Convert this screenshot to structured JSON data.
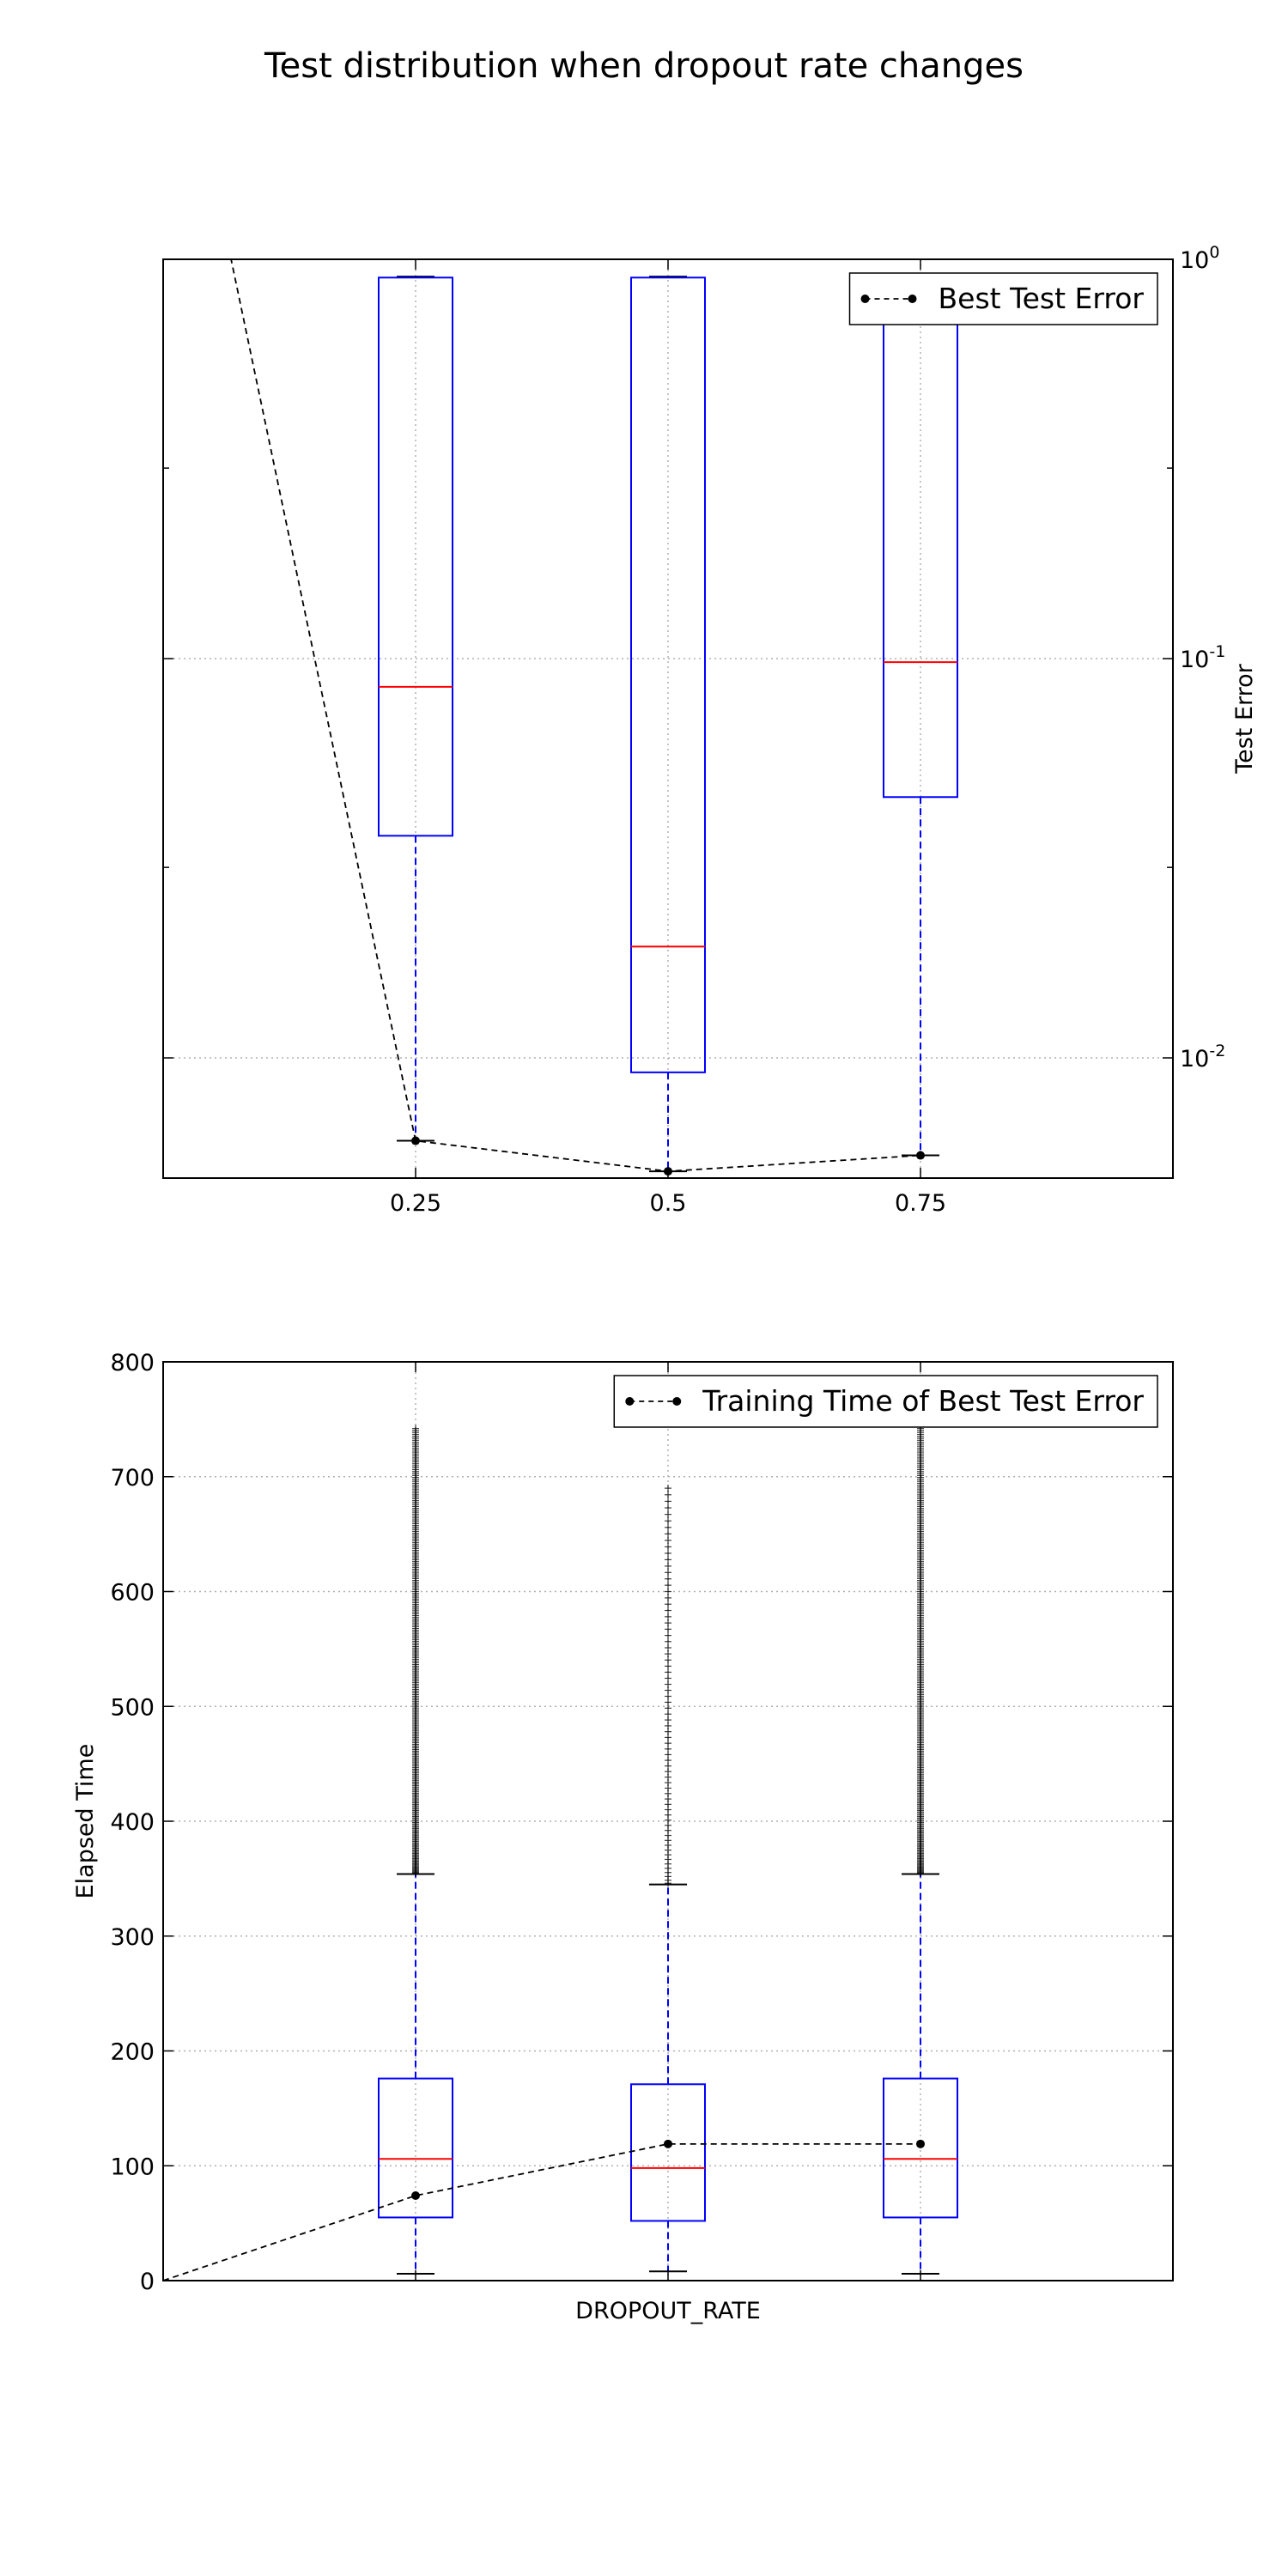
{
  "figure": {
    "title": "Test distribution when dropout rate changes"
  },
  "chart_data": [
    {
      "type": "box",
      "name": "test-error-panel",
      "x_categories": [
        0.25,
        0.5,
        0.75
      ],
      "xticklabels": [
        "0.25",
        "0.5",
        "0.75"
      ],
      "xlim": [
        0,
        1
      ],
      "xlabel": "",
      "ylabel": "Test Error",
      "ylabel_side": "right",
      "yscale": "log",
      "ylim": [
        0.005,
        1.0
      ],
      "ytick_major": [
        0.01,
        0.1,
        1.0
      ],
      "ytick_minor": [
        0.03,
        0.3
      ],
      "yticklabels": [
        {
          "value": 0.01,
          "base": "10",
          "exp": "-2"
        },
        {
          "value": 0.1,
          "base": "10",
          "exp": "-1"
        },
        {
          "value": 1.0,
          "base": "10",
          "exp": "0"
        }
      ],
      "grid": true,
      "legend": {
        "label": "Best Test Error",
        "placement": "upper-right"
      },
      "boxes": [
        {
          "x": 0.25,
          "whisker_low": 0.0062,
          "q1": 0.036,
          "median": 0.085,
          "q3": 0.9,
          "whisker_high": 0.905
        },
        {
          "x": 0.5,
          "whisker_low": 0.0052,
          "q1": 0.0092,
          "median": 0.019,
          "q3": 0.9,
          "whisker_high": 0.905
        },
        {
          "x": 0.75,
          "whisker_low": 0.0057,
          "q1": 0.045,
          "median": 0.098,
          "q3": 0.9,
          "whisker_high": 0.905
        }
      ],
      "best_line": {
        "name": "Best Test Error",
        "points": [
          {
            "x": 0.0,
            "y": 6.5,
            "marker": false
          },
          {
            "x": 0.25,
            "y": 0.0062,
            "marker": true
          },
          {
            "x": 0.5,
            "y": 0.0052,
            "marker": true
          },
          {
            "x": 0.75,
            "y": 0.0057,
            "marker": true
          }
        ]
      }
    },
    {
      "type": "box",
      "name": "elapsed-time-panel",
      "x_categories": [
        0.25,
        0.5,
        0.75
      ],
      "xticklabels": [
        "",
        "",
        ""
      ],
      "xlim": [
        0,
        1
      ],
      "xlabel": "DROPOUT_RATE",
      "ylabel": "Elapsed Time",
      "ylabel_side": "left",
      "yscale": "linear",
      "ylim": [
        0,
        800
      ],
      "yticks": [
        0,
        100,
        200,
        300,
        400,
        500,
        600,
        700,
        800
      ],
      "yticklabels": [
        "0",
        "100",
        "200",
        "300",
        "400",
        "500",
        "600",
        "700",
        "800"
      ],
      "grid": true,
      "legend": {
        "label": "Training Time of Best Test Error",
        "placement": "upper-right"
      },
      "boxes": [
        {
          "x": 0.25,
          "whisker_low": 6,
          "q1": 55,
          "median": 106,
          "q3": 176,
          "whisker_high": 354,
          "fliers": {
            "min": 355,
            "max": 742,
            "count": 260
          }
        },
        {
          "x": 0.5,
          "whisker_low": 8,
          "q1": 52,
          "median": 98,
          "q3": 171,
          "whisker_high": 345,
          "fliers": {
            "min": 346,
            "max": 690,
            "count": 70
          }
        },
        {
          "x": 0.75,
          "whisker_low": 6,
          "q1": 55,
          "median": 106,
          "q3": 176,
          "whisker_high": 354,
          "fliers": {
            "min": 355,
            "max": 742,
            "count": 260
          }
        }
      ],
      "best_line": {
        "name": "Training Time of Best Test Error",
        "points": [
          {
            "x": 0.0,
            "y": 0,
            "marker": false
          },
          {
            "x": 0.25,
            "y": 74,
            "marker": true
          },
          {
            "x": 0.5,
            "y": 119,
            "marker": true
          },
          {
            "x": 0.75,
            "y": 119,
            "marker": true
          }
        ]
      }
    }
  ],
  "colors": {
    "box": "#0000ff",
    "median": "#ff0000",
    "best_line": "#000000",
    "grid": "#b0b0b0",
    "flier": "#000000"
  }
}
